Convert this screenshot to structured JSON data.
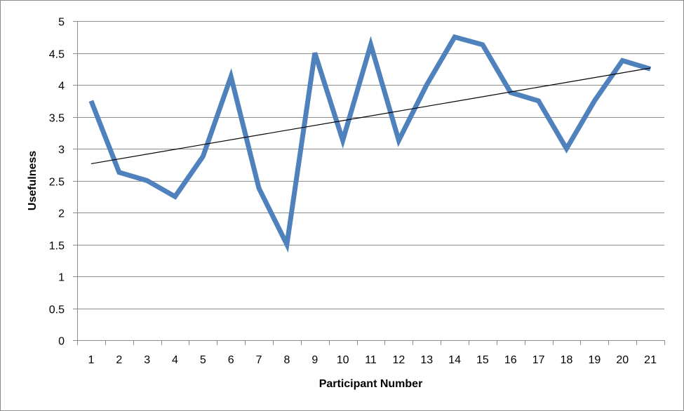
{
  "chart_data": {
    "type": "line",
    "title": "",
    "xlabel": "Participant Number",
    "ylabel": "Usefulness",
    "categories": [
      "1",
      "2",
      "3",
      "4",
      "5",
      "6",
      "7",
      "8",
      "9",
      "10",
      "11",
      "12",
      "13",
      "14",
      "15",
      "16",
      "17",
      "18",
      "19",
      "20",
      "21"
    ],
    "series": [
      {
        "values": [
          3.75,
          2.63,
          2.5,
          2.25,
          2.88,
          4.13,
          2.38,
          1.5,
          4.5,
          3.13,
          4.63,
          3.13,
          4.0,
          4.75,
          4.63,
          3.88,
          3.75,
          3.0,
          3.75,
          4.38,
          4.25
        ],
        "color": "#4f81bd"
      }
    ],
    "trendline": {
      "type": "linear",
      "color": "#000000"
    },
    "ylim": [
      0,
      5
    ],
    "yticks": [
      "0",
      "0.5",
      "1",
      "1.5",
      "2",
      "2.5",
      "3",
      "3.5",
      "4",
      "4.5",
      "5"
    ],
    "grid": true,
    "legend": "none"
  }
}
